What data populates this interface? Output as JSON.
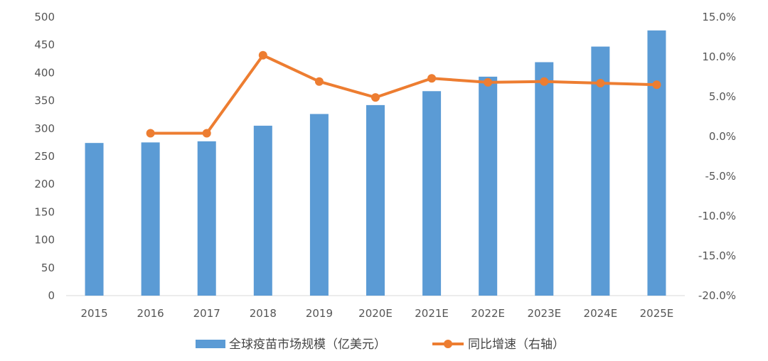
{
  "chart_data": {
    "type": "bar",
    "categories": [
      "2015",
      "2016",
      "2017",
      "2018",
      "2019",
      "2020E",
      "2021E",
      "2022E",
      "2023E",
      "2024E",
      "2025E"
    ],
    "series": [
      {
        "name": "全球疫苗市场规模（亿美元）",
        "type": "bar",
        "axis": "left",
        "color": "#5B9BD5",
        "values": [
          274,
          275,
          277,
          305,
          326,
          342,
          367,
          393,
          419,
          447,
          476
        ]
      },
      {
        "name": "同比增速（右轴）",
        "type": "line",
        "axis": "right",
        "color": "#ED7D31",
        "values": [
          null,
          0.4,
          0.4,
          10.2,
          6.9,
          4.9,
          7.3,
          6.8,
          6.9,
          6.7,
          6.5
        ]
      }
    ],
    "ylim_left": [
      0,
      500
    ],
    "yticks_left": [
      0,
      50,
      100,
      150,
      200,
      250,
      300,
      350,
      400,
      450,
      500
    ],
    "ylim_right": [
      -20,
      15
    ],
    "yticks_right": [
      "-20.0%",
      "-15.0%",
      "-10.0%",
      "-5.0%",
      "0.0%",
      "5.0%",
      "10.0%",
      "15.0%"
    ],
    "grid": false,
    "legend_position": "bottom"
  }
}
